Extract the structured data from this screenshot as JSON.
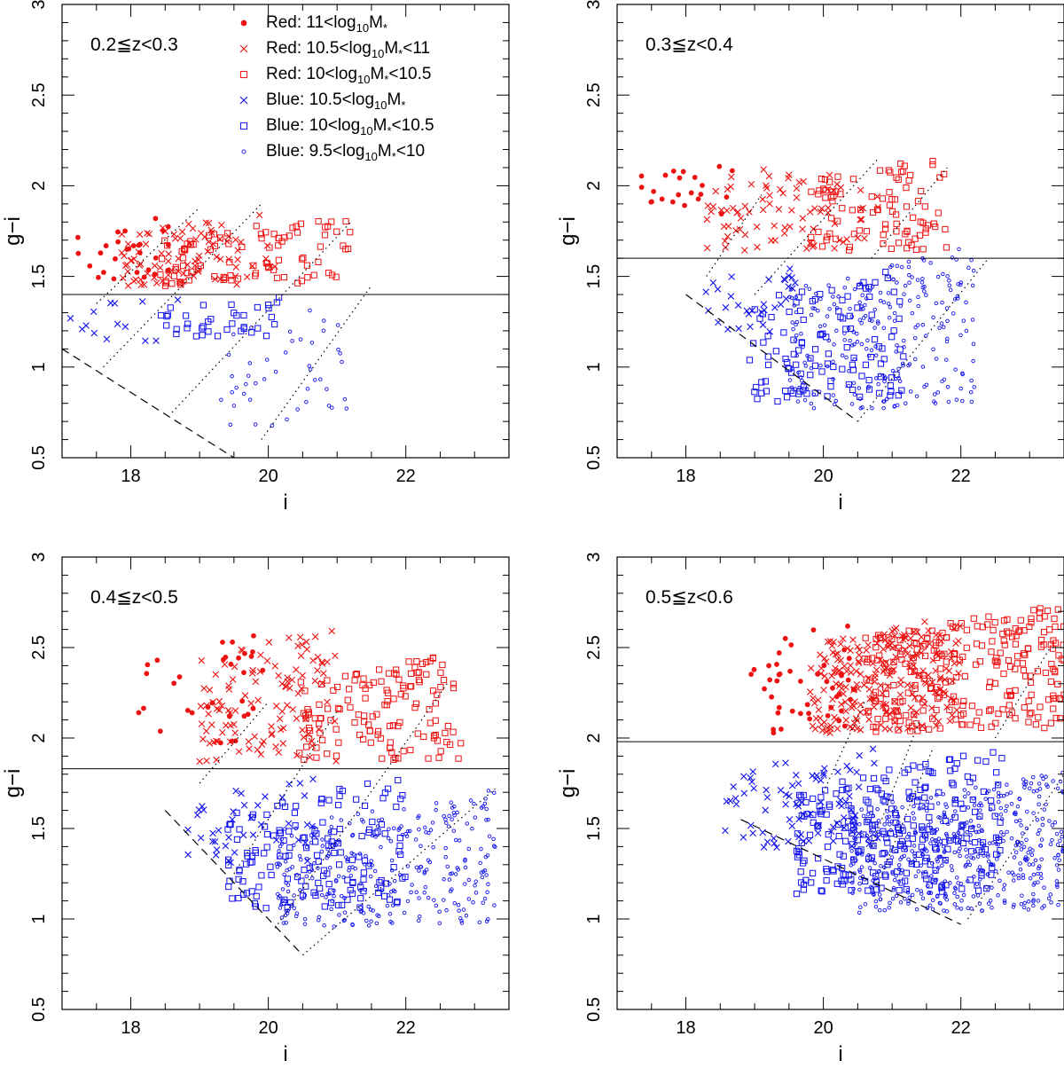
{
  "chart_data": {
    "type": "scatter",
    "shared": {
      "xlabel": "i",
      "ylabel": "g−i",
      "xlim": [
        17,
        23.5
      ],
      "ylim": [
        0.5,
        3
      ],
      "xticks": [
        18,
        20,
        22
      ],
      "yticks": [
        0.5,
        1,
        1.5,
        2,
        2.5,
        3
      ],
      "ytick_labels": [
        "0.5",
        "1",
        "1.5",
        "2",
        "2.5",
        "3"
      ],
      "xtick_labels": [
        "18",
        "20",
        "22"
      ]
    },
    "legend": {
      "entries": [
        {
          "label_prefix": "Red:  11<log",
          "sub": "10",
          "label_suffix": "M",
          "star": "*",
          "tail": "",
          "color": "#ee1111",
          "marker": "dot"
        },
        {
          "label_prefix": "Red:  10.5<log",
          "sub": "10",
          "label_suffix": "M",
          "star": "*",
          "tail": "<11",
          "color": "#ee1111",
          "marker": "cross"
        },
        {
          "label_prefix": "Red:  10<log",
          "sub": "10",
          "label_suffix": "M",
          "star": "*",
          "tail": "<10.5",
          "color": "#ee1111",
          "marker": "square"
        },
        {
          "label_prefix": "Blue:  10.5<log",
          "sub": "10",
          "label_suffix": "M",
          "star": "*",
          "tail": "",
          "color": "#1111ee",
          "marker": "cross"
        },
        {
          "label_prefix": "Blue:  10<log",
          "sub": "10",
          "label_suffix": "M",
          "star": "*",
          "tail": "<10.5",
          "color": "#1111ee",
          "marker": "square"
        },
        {
          "label_prefix": "Blue:  9.5<log",
          "sub": "10",
          "label_suffix": "M",
          "star": "*",
          "tail": "<10",
          "color": "#1111ee",
          "marker": "circle"
        }
      ]
    },
    "panels": [
      {
        "title": "0.2≦z<0.3",
        "divider_gi": 1.4,
        "dashed_line": [
          [
            17.0,
            1.1
          ],
          [
            19.5,
            0.5
          ]
        ],
        "dotted_lines": [
          [
            [
              17.5,
              1.35
            ],
            [
              19.0,
              1.88
            ]
          ],
          [
            [
              17.6,
              1.0
            ],
            [
              19.9,
              1.9
            ]
          ],
          [
            [
              18.6,
              0.75
            ],
            [
              21.2,
              1.8
            ]
          ],
          [
            [
              19.9,
              0.6
            ],
            [
              21.5,
              1.45
            ]
          ]
        ],
        "clusters": [
          {
            "series": "red-dot",
            "n": 28,
            "x": [
              17.1,
              18.8
            ],
            "y": [
              1.45,
              1.87
            ],
            "seed": 11
          },
          {
            "series": "red-cross",
            "n": 90,
            "x": [
              17.8,
              20.1
            ],
            "y": [
              1.42,
              1.88
            ],
            "seed": 12
          },
          {
            "series": "red-square",
            "n": 95,
            "x": [
              18.4,
              21.2
            ],
            "y": [
              1.42,
              1.85
            ],
            "seed": 13
          },
          {
            "series": "blue-cross",
            "n": 14,
            "x": [
              17.0,
              18.8
            ],
            "y": [
              1.12,
              1.42
            ],
            "seed": 14
          },
          {
            "series": "blue-square",
            "n": 38,
            "x": [
              18.4,
              20.2
            ],
            "y": [
              1.15,
              1.4
            ],
            "seed": 15
          },
          {
            "series": "blue-circle",
            "n": 45,
            "x": [
              19.1,
              21.2
            ],
            "y": [
              0.62,
              1.4
            ],
            "seed": 16
          }
        ]
      },
      {
        "title": "0.3≦z<0.4",
        "divider_gi": 1.6,
        "dashed_line": [
          [
            18.0,
            1.4
          ],
          [
            20.5,
            0.7
          ]
        ],
        "dotted_lines": [
          [
            [
              18.3,
              1.5
            ],
            [
              19.1,
              1.95
            ]
          ],
          [
            [
              19.0,
              1.4
            ],
            [
              20.8,
              2.15
            ]
          ],
          [
            [
              20.5,
              0.7
            ],
            [
              22.4,
              1.6
            ]
          ],
          [
            [
              20.7,
              1.6
            ],
            [
              21.8,
              2.1
            ]
          ]
        ],
        "clusters": [
          {
            "series": "red-dot",
            "n": 22,
            "x": [
              17.2,
              18.8
            ],
            "y": [
              1.8,
              2.17
            ],
            "seed": 21
          },
          {
            "series": "red-cross",
            "n": 85,
            "x": [
              18.3,
              20.8
            ],
            "y": [
              1.6,
              2.22
            ],
            "seed": 22
          },
          {
            "series": "red-square",
            "n": 95,
            "x": [
              19.8,
              21.8
            ],
            "y": [
              1.6,
              2.2
            ],
            "seed": 23
          },
          {
            "series": "blue-cross",
            "n": 32,
            "x": [
              18.2,
              19.6
            ],
            "y": [
              1.15,
              1.6
            ],
            "seed": 24
          },
          {
            "series": "blue-square",
            "n": 120,
            "x": [
              18.9,
              21.2
            ],
            "y": [
              0.75,
              1.6
            ],
            "seed": 25
          },
          {
            "series": "blue-circle",
            "n": 260,
            "x": [
              19.5,
              22.2
            ],
            "y": [
              0.7,
              1.72
            ],
            "seed": 26
          }
        ]
      },
      {
        "title": "0.4≦z<0.5",
        "divider_gi": 1.83,
        "dashed_line": [
          [
            18.5,
            1.6
          ],
          [
            20.5,
            0.8
          ]
        ],
        "dotted_lines": [
          [
            [
              19.0,
              1.75
            ],
            [
              20.0,
              2.2
            ]
          ],
          [
            [
              19.5,
              1.25
            ],
            [
              21.0,
              2.15
            ]
          ],
          [
            [
              20.1,
              0.95
            ],
            [
              22.6,
              2.3
            ]
          ],
          [
            [
              20.5,
              0.8
            ],
            [
              23.3,
              1.72
            ]
          ]
        ],
        "clusters": [
          {
            "series": "red-dot",
            "n": 32,
            "x": [
              18.1,
              20.0
            ],
            "y": [
              1.9,
              2.63
            ],
            "seed": 31
          },
          {
            "series": "red-cross",
            "n": 115,
            "x": [
              19.0,
              21.0
            ],
            "y": [
              1.8,
              2.67
            ],
            "seed": 32
          },
          {
            "series": "red-square",
            "n": 140,
            "x": [
              20.4,
              22.8
            ],
            "y": [
              1.83,
              2.5
            ],
            "seed": 33
          },
          {
            "series": "blue-cross",
            "n": 42,
            "x": [
              18.8,
              20.7
            ],
            "y": [
              1.27,
              1.83
            ],
            "seed": 34
          },
          {
            "series": "blue-square",
            "n": 160,
            "x": [
              19.4,
              22.0
            ],
            "y": [
              1.0,
              1.83
            ],
            "seed": 35
          },
          {
            "series": "blue-circle",
            "n": 300,
            "x": [
              20.1,
              23.3
            ],
            "y": [
              0.9,
              1.75
            ],
            "seed": 36
          }
        ]
      },
      {
        "title": "0.5≦z<0.6",
        "divider_gi": 1.98,
        "dashed_line": [
          [
            18.8,
            1.55
          ],
          [
            22.0,
            0.97
          ]
        ],
        "dotted_lines": [
          [
            [
              20.0,
              1.7
            ],
            [
              20.6,
              2.2
            ]
          ],
          [
            [
              20.7,
              1.4
            ],
            [
              21.4,
              2.1
            ]
          ],
          [
            [
              20.8,
              1.2
            ],
            [
              21.6,
              1.95
            ]
          ],
          [
            [
              22.1,
              1.0
            ],
            [
              23.5,
              1.8
            ]
          ],
          [
            [
              22.5,
              2.0
            ],
            [
              23.3,
              2.5
            ]
          ]
        ],
        "clusters": [
          {
            "series": "red-dot",
            "n": 45,
            "x": [
              18.9,
              20.5
            ],
            "y": [
              1.98,
              2.72
            ],
            "seed": 41
          },
          {
            "series": "red-cross",
            "n": 230,
            "x": [
              19.8,
              22.0
            ],
            "y": [
              1.98,
              2.72
            ],
            "seed": 42
          },
          {
            "series": "red-square",
            "n": 260,
            "x": [
              20.6,
              23.5
            ],
            "y": [
              1.98,
              2.78
            ],
            "seed": 43
          },
          {
            "series": "blue-cross",
            "n": 85,
            "x": [
              18.5,
              20.8
            ],
            "y": [
              1.35,
              1.98
            ],
            "seed": 44
          },
          {
            "series": "blue-square",
            "n": 260,
            "x": [
              19.6,
              22.6
            ],
            "y": [
              1.08,
              1.98
            ],
            "seed": 45
          },
          {
            "series": "blue-circle",
            "n": 520,
            "x": [
              20.4,
              23.5
            ],
            "y": [
              0.98,
              1.85
            ],
            "seed": 46
          }
        ]
      }
    ]
  }
}
